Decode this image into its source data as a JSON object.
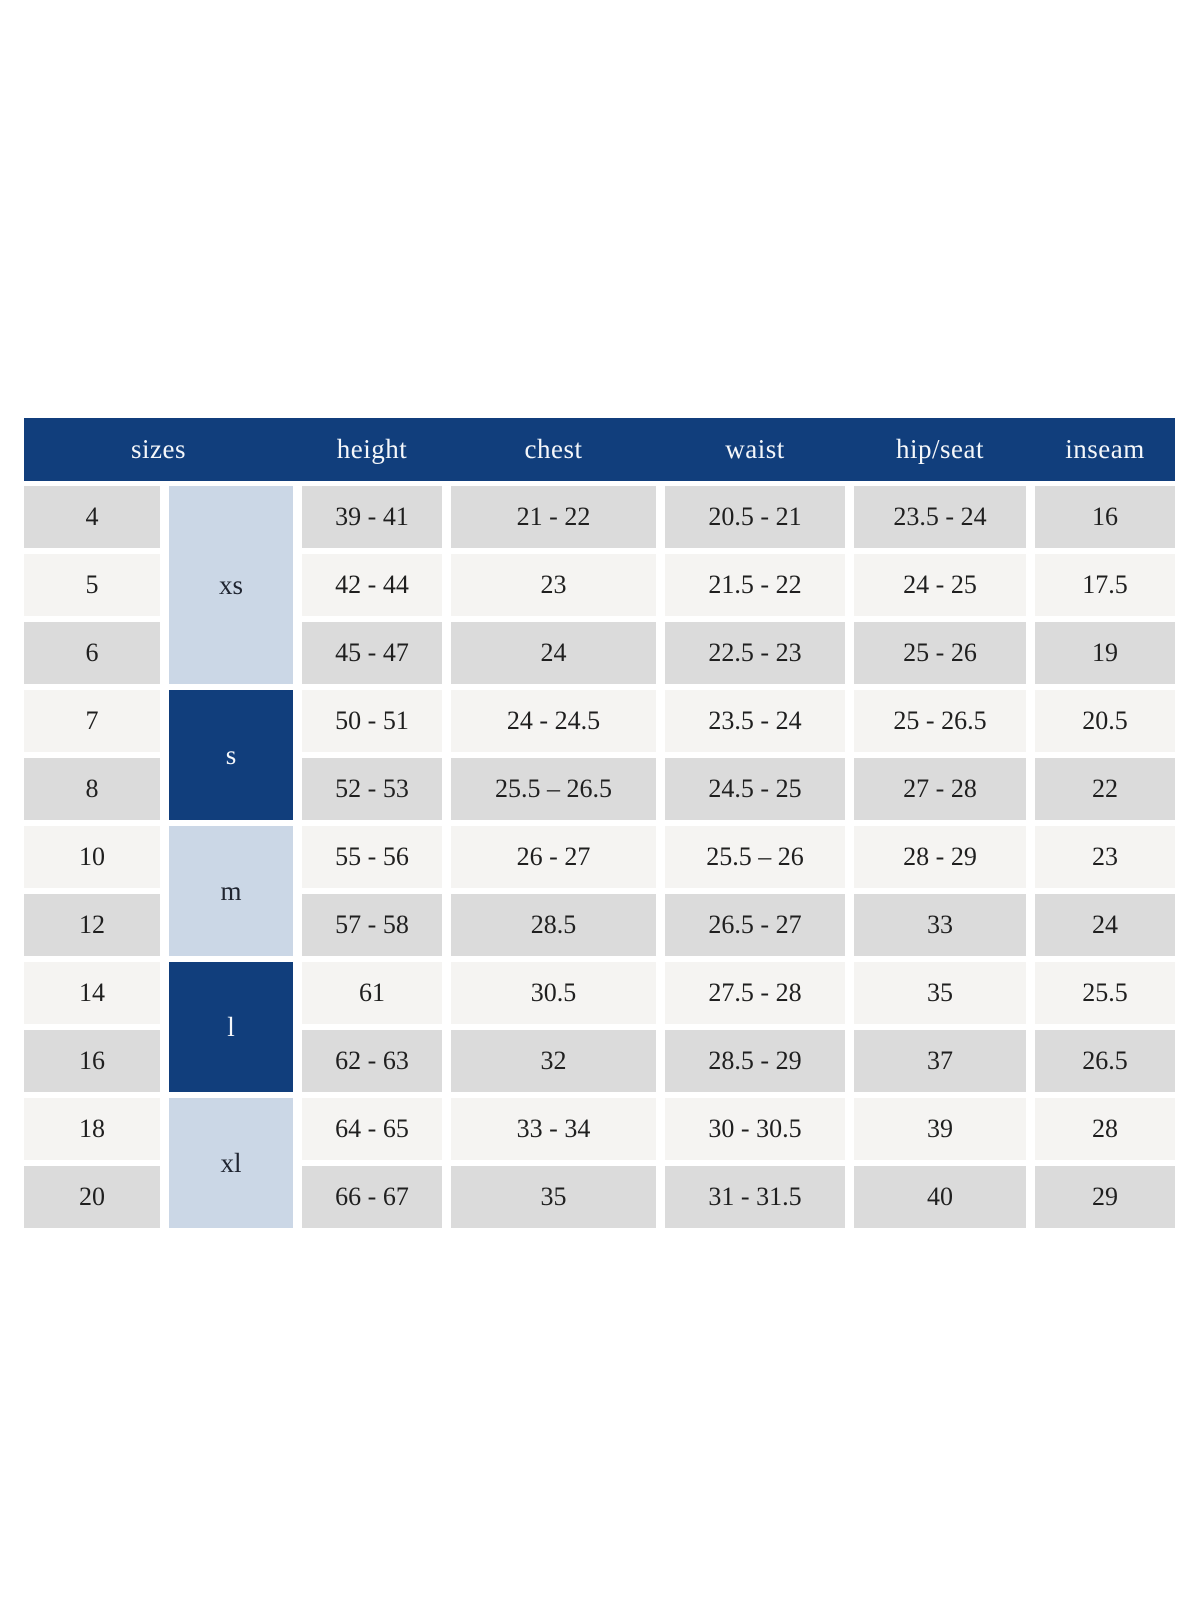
{
  "colors": {
    "header_bg": "#113e7c",
    "header_text": "#f5f7fa",
    "group_dark_bg": "#113e7c",
    "group_dark_text": "#f5f7fa",
    "group_light_bg": "#cbd7e6",
    "group_light_text": "#1f2430",
    "row_gray": "#dbdbdb",
    "row_light": "#f5f4f2",
    "cell_text": "#1f1f1f",
    "page_bg": "#ffffff"
  },
  "chart_data": {
    "type": "table",
    "title": "",
    "columns": [
      "sizes",
      "height",
      "chest",
      "waist",
      "hip/seat",
      "inseam"
    ],
    "size_groups": [
      {
        "label": "xs",
        "variant": "light",
        "row_start": 1,
        "row_span": 3
      },
      {
        "label": "s",
        "variant": "dark",
        "row_start": 4,
        "row_span": 2
      },
      {
        "label": "m",
        "variant": "light",
        "row_start": 6,
        "row_span": 2
      },
      {
        "label": "l",
        "variant": "dark",
        "row_start": 8,
        "row_span": 2
      },
      {
        "label": "xl",
        "variant": "light",
        "row_start": 10,
        "row_span": 2
      }
    ],
    "rows": [
      {
        "size": "4",
        "group": "xs",
        "height": "39 - 41",
        "chest": "21 - 22",
        "waist": "20.5 - 21",
        "hip_seat": "23.5 - 24",
        "inseam": "16"
      },
      {
        "size": "5",
        "group": "xs",
        "height": "42 - 44",
        "chest": "23",
        "waist": "21.5 - 22",
        "hip_seat": "24 - 25",
        "inseam": "17.5"
      },
      {
        "size": "6",
        "group": "xs",
        "height": "45 - 47",
        "chest": "24",
        "waist": "22.5 - 23",
        "hip_seat": "25 - 26",
        "inseam": "19"
      },
      {
        "size": "7",
        "group": "s",
        "height": "50 - 51",
        "chest": "24 - 24.5",
        "waist": "23.5 - 24",
        "hip_seat": "25 - 26.5",
        "inseam": "20.5"
      },
      {
        "size": "8",
        "group": "s",
        "height": "52 - 53",
        "chest": "25.5 – 26.5",
        "waist": "24.5 - 25",
        "hip_seat": "27 - 28",
        "inseam": "22"
      },
      {
        "size": "10",
        "group": "m",
        "height": "55 - 56",
        "chest": "26 - 27",
        "waist": "25.5 – 26",
        "hip_seat": "28 - 29",
        "inseam": "23"
      },
      {
        "size": "12",
        "group": "m",
        "height": "57 - 58",
        "chest": "28.5",
        "waist": "26.5 - 27",
        "hip_seat": "33",
        "inseam": "24"
      },
      {
        "size": "14",
        "group": "l",
        "height": "61",
        "chest": "30.5",
        "waist": "27.5 - 28",
        "hip_seat": "35",
        "inseam": "25.5"
      },
      {
        "size": "16",
        "group": "l",
        "height": "62 - 63",
        "chest": "32",
        "waist": "28.5 - 29",
        "hip_seat": "37",
        "inseam": "26.5"
      },
      {
        "size": "18",
        "group": "xl",
        "height": "64 - 65",
        "chest": "33 - 34",
        "waist": "30 - 30.5",
        "hip_seat": "39",
        "inseam": "28"
      },
      {
        "size": "20",
        "group": "xl",
        "height": "66 - 67",
        "chest": "35",
        "waist": "31 - 31.5",
        "hip_seat": "40",
        "inseam": "29"
      }
    ]
  }
}
